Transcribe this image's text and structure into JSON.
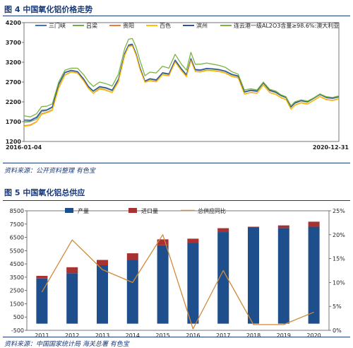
{
  "figure1": {
    "title": "图 4   中国氧化铝价格走势",
    "source": "资料来源：公开资料整理   有色宝"
  },
  "figure2": {
    "title": "图 5   中国氧化铝总供应",
    "source": "资料来源：中国国家统计局   海关总署   有色宝"
  },
  "chart_data": [
    {
      "type": "line",
      "title": "中国氧化铝价格走势",
      "xlabel": "",
      "ylabel": "",
      "x_tick_labels": [
        "2016-01-04",
        "2020-12-31"
      ],
      "x_range": [
        2016.0,
        2021.0
      ],
      "ylim": [
        1200,
        4200
      ],
      "y_ticks": [
        1200,
        1700,
        2200,
        2700,
        3200,
        3700,
        4200
      ],
      "grid": false,
      "legend_position": "top",
      "x": [
        2016.0,
        2016.1,
        2016.2,
        2016.28,
        2016.36,
        2016.45,
        2016.55,
        2016.65,
        2016.75,
        2016.85,
        2016.95,
        2017.02,
        2017.1,
        2017.2,
        2017.3,
        2017.4,
        2017.5,
        2017.6,
        2017.66,
        2017.72,
        2017.78,
        2017.84,
        2017.92,
        2018.0,
        2018.1,
        2018.2,
        2018.3,
        2018.4,
        2018.5,
        2018.58,
        2018.65,
        2018.72,
        2018.8,
        2018.9,
        2019.0,
        2019.1,
        2019.2,
        2019.3,
        2019.4,
        2019.5,
        2019.6,
        2019.7,
        2019.8,
        2019.9,
        2020.0,
        2020.08,
        2020.16,
        2020.24,
        2020.3,
        2020.4,
        2020.5,
        2020.6,
        2020.7,
        2020.8,
        2020.9,
        2021.0
      ],
      "series": [
        {
          "name": "三门峡",
          "color": "#4472c4",
          "values": [
            1750,
            1740,
            1820,
            1990,
            2000,
            2080,
            2650,
            2950,
            3000,
            2970,
            2780,
            2600,
            2480,
            2590,
            2560,
            2500,
            2780,
            3430,
            3640,
            3660,
            3420,
            3080,
            2730,
            2790,
            2760,
            2940,
            2910,
            3260,
            3040,
            2890,
            3300,
            3020,
            3010,
            3050,
            3040,
            3020,
            2980,
            2900,
            2860,
            2460,
            2500,
            2480,
            2690,
            2500,
            2450,
            2370,
            2320,
            2080,
            2180,
            2240,
            2210,
            2300,
            2400,
            2320,
            2300,
            2340
          ]
        },
        {
          "name": "吕梁",
          "color": "#70ad47",
          "values": [
            1680,
            1700,
            1760,
            1950,
            1980,
            2050,
            2620,
            2930,
            2990,
            2960,
            2760,
            2580,
            2460,
            2570,
            2540,
            2480,
            2760,
            3400,
            3620,
            3640,
            3400,
            3060,
            2720,
            2770,
            2740,
            2920,
            2890,
            3240,
            3020,
            2870,
            3280,
            3000,
            2990,
            3030,
            3020,
            3000,
            2960,
            2880,
            2840,
            2440,
            2480,
            2460,
            2670,
            2480,
            2430,
            2350,
            2300,
            2060,
            2160,
            2220,
            2190,
            2280,
            2380,
            2300,
            2280,
            2320
          ]
        },
        {
          "name": "贵阳",
          "color": "#ed7d31",
          "values": [
            1600,
            1620,
            1700,
            1900,
            1940,
            2000,
            2560,
            2880,
            2960,
            2930,
            2730,
            2550,
            2420,
            2540,
            2500,
            2440,
            2720,
            3380,
            3600,
            3620,
            3380,
            3030,
            2700,
            2740,
            2710,
            2890,
            2860,
            3210,
            2990,
            2840,
            3250,
            2970,
            2960,
            3000,
            2990,
            2970,
            2930,
            2850,
            2810,
            2400,
            2440,
            2420,
            2630,
            2440,
            2390,
            2310,
            2260,
            2020,
            2120,
            2180,
            2150,
            2240,
            2340,
            2260,
            2240,
            2280
          ]
        },
        {
          "name": "百色",
          "color": "#ffc000",
          "values": [
            1580,
            1600,
            1690,
            1880,
            1920,
            1980,
            2540,
            2870,
            2950,
            2920,
            2720,
            2540,
            2410,
            2520,
            2490,
            2430,
            2700,
            3370,
            3590,
            3610,
            3370,
            3020,
            2690,
            2730,
            2700,
            2880,
            2850,
            3200,
            2980,
            2830,
            3240,
            2960,
            2950,
            2990,
            2980,
            2960,
            2920,
            2840,
            2800,
            2390,
            2430,
            2410,
            2620,
            2430,
            2380,
            2300,
            2250,
            2010,
            2110,
            2170,
            2140,
            2230,
            2330,
            2250,
            2230,
            2270
          ]
        },
        {
          "name": "滨州",
          "color": "#2f5597",
          "values": [
            1720,
            1720,
            1800,
            1980,
            1990,
            2070,
            2640,
            2940,
            2990,
            2960,
            2770,
            2590,
            2470,
            2580,
            2550,
            2490,
            2770,
            3420,
            3630,
            3650,
            3410,
            3070,
            2720,
            2780,
            2750,
            2930,
            2900,
            3250,
            3030,
            2880,
            3290,
            3010,
            3000,
            3040,
            3030,
            3010,
            2970,
            2890,
            2850,
            2450,
            2490,
            2470,
            2680,
            2490,
            2440,
            2360,
            2310,
            2070,
            2170,
            2230,
            2200,
            2290,
            2390,
            2310,
            2290,
            2330
          ]
        },
        {
          "name": "连云港一级AL2O3含量≥98.6%:澳大利亚",
          "color": "#7cb342",
          "values": [
            1850,
            1820,
            1900,
            2080,
            2090,
            2150,
            2700,
            3000,
            3050,
            3050,
            2880,
            2720,
            2590,
            2700,
            2660,
            2600,
            2900,
            3550,
            3780,
            3800,
            3580,
            3250,
            2860,
            2950,
            2930,
            3100,
            3050,
            3400,
            3150,
            3000,
            3450,
            3150,
            3150,
            3180,
            3150,
            3120,
            3070,
            2960,
            2900,
            2500,
            2530,
            2500,
            2700,
            2520,
            2470,
            2380,
            2330,
            2100,
            2200,
            2250,
            2220,
            2300,
            2400,
            2330,
            2310,
            2350
          ]
        }
      ]
    },
    {
      "type": "bar",
      "title": "中国氧化铝总供应",
      "xlabel": "",
      "ylabel": "",
      "categories": [
        "2011",
        "2012",
        "2013",
        "2014",
        "2015",
        "2016",
        "2017",
        "2018",
        "2019",
        "2020"
      ],
      "ylim": [
        -500,
        8500
      ],
      "y_ticks": [
        -500,
        500,
        1500,
        2500,
        3500,
        4500,
        5500,
        6500,
        7500,
        8500
      ],
      "y2lim": [
        0,
        25
      ],
      "y2_ticks": [
        "0%",
        "5%",
        "10%",
        "15%",
        "20%",
        "25%"
      ],
      "grid": false,
      "legend_position": "top",
      "stacked": true,
      "series": [
        {
          "name": "产量",
          "axis": "left",
          "color": "#1f4e8c",
          "values": [
            3400,
            3800,
            4400,
            4800,
            5900,
            6100,
            6900,
            7250,
            7200,
            7300
          ]
        },
        {
          "name": "进口量",
          "axis": "left",
          "color": "#a83232",
          "values": [
            200,
            450,
            400,
            500,
            450,
            300,
            290,
            50,
            200,
            380
          ]
        },
        {
          "name": "总供应同比",
          "axis": "right",
          "type": "line",
          "color": "#d08a3a",
          "values": [
            8.0,
            18.9,
            12.7,
            10.0,
            20.0,
            0.3,
            12.5,
            1.2,
            1.2,
            3.8
          ]
        }
      ]
    }
  ]
}
